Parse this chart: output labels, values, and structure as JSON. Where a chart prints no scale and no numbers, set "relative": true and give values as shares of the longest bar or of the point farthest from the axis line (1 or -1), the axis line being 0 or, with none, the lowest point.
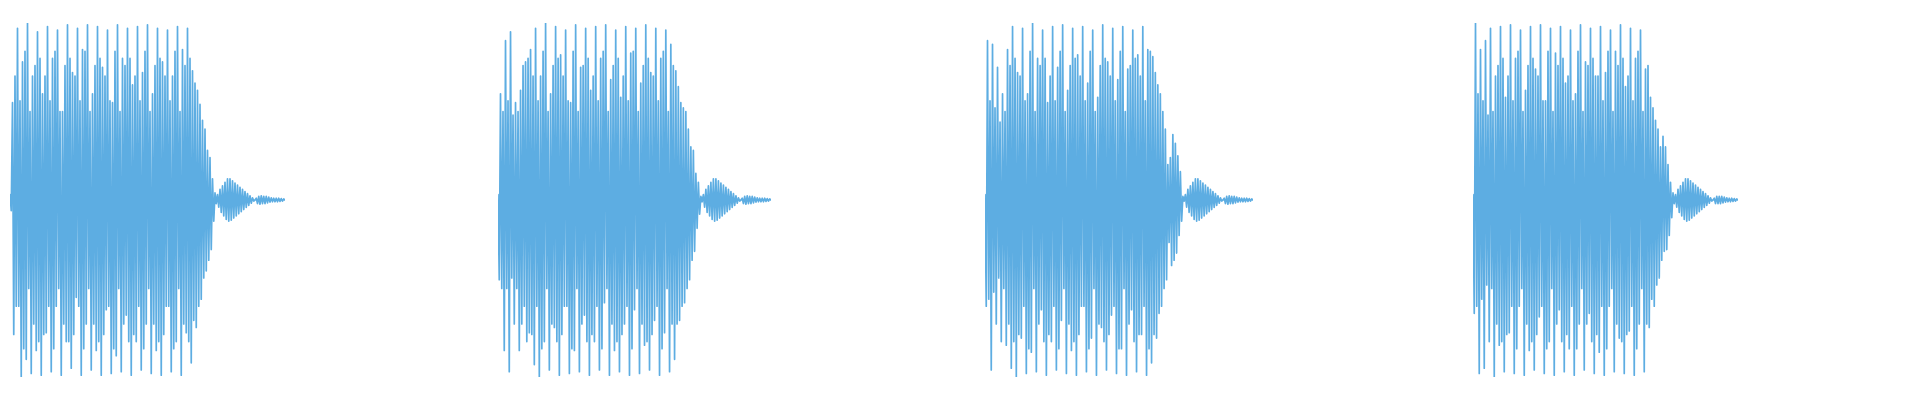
{
  "chart_data": [
    {
      "type": "line",
      "relative": true,
      "color": "#5dade2",
      "categories": [
        null,
        null,
        null,
        null,
        null,
        null,
        null,
        null,
        null,
        null,
        null,
        null,
        null,
        null,
        null,
        null,
        null,
        null,
        null,
        null,
        null,
        null,
        null,
        null,
        null,
        null,
        null,
        null,
        null,
        null,
        null,
        null,
        null,
        null,
        null,
        null,
        null,
        null,
        null,
        null,
        null,
        null,
        null,
        null,
        null,
        null,
        null,
        null,
        null,
        null,
        null,
        null,
        null,
        null,
        null,
        null,
        null,
        null,
        null,
        null,
        null,
        null,
        null,
        null,
        null,
        null,
        null,
        null,
        null,
        null,
        null,
        null,
        null,
        null,
        null,
        null,
        null,
        null,
        null,
        null,
        null,
        null,
        null,
        null,
        null,
        null,
        null,
        null,
        null,
        null,
        null,
        null,
        null,
        null,
        null,
        null,
        null,
        null,
        null,
        null,
        null,
        null,
        null,
        null,
        null,
        null,
        null,
        null,
        null,
        null,
        null,
        null,
        null,
        null,
        null,
        null,
        null,
        null,
        null,
        null,
        null,
        null,
        null,
        null,
        null,
        null,
        null,
        null,
        null,
        null,
        null,
        null,
        null,
        null,
        null,
        null,
        null,
        null,
        null,
        null,
        null,
        null,
        null,
        null,
        null,
        null,
        null,
        null,
        null,
        null,
        null,
        null,
        null,
        null,
        null,
        null,
        null,
        null,
        null,
        null,
        null,
        null,
        null,
        null,
        null,
        null,
        null,
        null,
        null,
        null,
        null,
        null,
        null,
        null,
        null,
        null,
        null,
        null,
        null,
        null,
        null,
        null,
        null,
        null,
        null,
        null,
        null,
        null,
        null,
        null,
        null,
        null,
        null,
        null,
        null,
        null,
        null,
        null,
        null,
        null,
        null,
        null,
        null,
        null,
        null,
        null,
        null,
        null,
        null,
        null,
        null,
        null,
        null,
        null,
        null,
        null,
        null,
        null,
        null,
        null,
        null
      ],
      "values": [
        0.515,
        0.47,
        0.775,
        0.12,
        0.85,
        0.2,
        0.985,
        0.2,
        0.78,
        0,
        0.89,
        0.08,
        0.92,
        0.05,
        1,
        0.25,
        0.75,
        0.01,
        0.85,
        0.15,
        0.88,
        0.075,
        0.975,
        0.1,
        0.9,
        0.005,
        0.8,
        0.12,
        0.85,
        0.125,
        0.99,
        0.2,
        0.78,
        0.015,
        0.9,
        0.08,
        0.92,
        0.2,
        0.98,
        0.25,
        0.75,
        0.005,
        0.75,
        0.15,
        0.88,
        0.1,
        0.995,
        0.1,
        0.9,
        0.025,
        0.86,
        0.12,
        0.85,
        0.225,
        0.985,
        0.2,
        0.78,
        0.005,
        0.925,
        0.08,
        0.92,
        0.15,
        0.995,
        0.25,
        0.75,
        0.02,
        0.8,
        0.15,
        0.88,
        0.075,
        0.99,
        0.1,
        0.9,
        0.005,
        0.875,
        0.12,
        0.85,
        0.19,
        0.98,
        0.2,
        0.78,
        0.01,
        0.775,
        0.08,
        0.92,
        0.06,
        0.995,
        0.25,
        0.75,
        0.015,
        0.9,
        0.15,
        0.88,
        0.175,
        0.985,
        0.1,
        0.9,
        0.005,
        0.825,
        0.12,
        0.85,
        0.1,
        0.99,
        0.2,
        0.78,
        0.02,
        0.86,
        0.08,
        0.92,
        0.15,
        0.995,
        0.25,
        0.75,
        0.01,
        0.8,
        0.15,
        0.88,
        0.075,
        0.985,
        0.1,
        0.9,
        0.005,
        0.89,
        0.12,
        0.85,
        0.2,
        0.98,
        0.2,
        0.78,
        0.015,
        0.85,
        0.08,
        0.92,
        0.1,
        0.99,
        0.25,
        0.75,
        0.005,
        0.925,
        0.15,
        0.88,
        0.125,
        0.985,
        0.1,
        0.9,
        0.04,
        0.865,
        0.16,
        0.83,
        0.14,
        0.81,
        0.2,
        0.77,
        0.22,
        0.725,
        0.28,
        0.7,
        0.3,
        0.64,
        0.33,
        0.62,
        0.36,
        0.56,
        0.44,
        0.52,
        0.49,
        0.515,
        0.48,
        0.53,
        0.465,
        0.54,
        0.455,
        0.55,
        0.445,
        0.56,
        0.44,
        0.56,
        0.443,
        0.554,
        0.449,
        0.548,
        0.455,
        0.542,
        0.461,
        0.536,
        0.467,
        0.53,
        0.473,
        0.524,
        0.479,
        0.518,
        0.485,
        0.512,
        0.491,
        0.506,
        0.497,
        0.5,
        0.505,
        0.49,
        0.51,
        0.488,
        0.512,
        0.49,
        0.51,
        0.49,
        0.51,
        0.492,
        0.508,
        0.494,
        0.506,
        0.495,
        0.505,
        0.495,
        0.505,
        0.495,
        0.505,
        0.496,
        0.504,
        0.497,
        0.503,
        0.5
      ]
    },
    {
      "type": "line",
      "relative": true,
      "color": "#5dade2",
      "categories": [
        null,
        null,
        null,
        null,
        null,
        null,
        null,
        null,
        null,
        null,
        null,
        null,
        null,
        null,
        null,
        null,
        null,
        null,
        null,
        null,
        null,
        null,
        null,
        null,
        null,
        null,
        null,
        null,
        null,
        null,
        null,
        null,
        null,
        null,
        null,
        null,
        null,
        null,
        null,
        null,
        null,
        null,
        null,
        null,
        null,
        null,
        null,
        null,
        null,
        null,
        null,
        null,
        null,
        null,
        null,
        null,
        null,
        null,
        null,
        null,
        null,
        null,
        null,
        null,
        null,
        null,
        null,
        null,
        null,
        null,
        null,
        null,
        null,
        null,
        null,
        null,
        null,
        null,
        null,
        null,
        null,
        null,
        null,
        null,
        null,
        null,
        null,
        null,
        null,
        null,
        null,
        null,
        null,
        null,
        null,
        null,
        null,
        null,
        null,
        null,
        null,
        null,
        null,
        null,
        null,
        null,
        null,
        null,
        null,
        null,
        null,
        null,
        null,
        null,
        null,
        null,
        null,
        null,
        null,
        null,
        null,
        null,
        null,
        null,
        null,
        null,
        null,
        null,
        null,
        null,
        null,
        null,
        null,
        null,
        null,
        null,
        null,
        null,
        null,
        null,
        null,
        null,
        null,
        null,
        null,
        null,
        null,
        null,
        null,
        null,
        null,
        null,
        null,
        null,
        null,
        null,
        null,
        null,
        null,
        null,
        null,
        null,
        null,
        null,
        null,
        null,
        null,
        null,
        null,
        null,
        null,
        null,
        null,
        null,
        null,
        null,
        null,
        null,
        null,
        null,
        null,
        null,
        null,
        null,
        null,
        null,
        null,
        null,
        null,
        null,
        null,
        null,
        null,
        null,
        null,
        null,
        null,
        null,
        null,
        null,
        null,
        null,
        null,
        null,
        null,
        null,
        null,
        null,
        null,
        null,
        null,
        null,
        null,
        null,
        null,
        null,
        null,
        null,
        null
      ],
      "values": [
        0.515,
        0.275,
        0.8,
        0.25,
        0.75,
        0.075,
        0.95,
        0.25,
        0.78,
        0.015,
        0.975,
        0.28,
        0.74,
        0.15,
        0.775,
        0.25,
        0.75,
        0.075,
        0.81,
        0.15,
        0.88,
        0.2,
        0.89,
        0.1,
        0.9,
        0.125,
        0.925,
        0.12,
        0.85,
        0.035,
        0.985,
        0.2,
        0.78,
        0,
        0.85,
        0.08,
        0.92,
        0.1,
        1,
        0.25,
        0.75,
        0.02,
        0.8,
        0.15,
        0.88,
        0.14,
        0.99,
        0.1,
        0.9,
        0.005,
        0.91,
        0.12,
        0.85,
        0.2,
        0.98,
        0.2,
        0.78,
        0.01,
        0.775,
        0.08,
        0.92,
        0.075,
        0.995,
        0.25,
        0.75,
        0.015,
        0.875,
        0.15,
        0.88,
        0.175,
        0.985,
        0.1,
        0.9,
        0.005,
        0.81,
        0.12,
        0.85,
        0.1,
        0.99,
        0.2,
        0.78,
        0.02,
        0.9,
        0.08,
        0.92,
        0.21,
        0.995,
        0.25,
        0.75,
        0.005,
        0.84,
        0.15,
        0.88,
        0.075,
        0.98,
        0.1,
        0.9,
        0.015,
        0.79,
        0.12,
        0.85,
        0.15,
        0.99,
        0.2,
        0.78,
        0.005,
        0.915,
        0.08,
        0.92,
        0.19,
        0.985,
        0.25,
        0.75,
        0.01,
        0.83,
        0.15,
        0.88,
        0.09,
        0.995,
        0.1,
        0.9,
        0.02,
        0.86,
        0.12,
        0.85,
        0.16,
        0.985,
        0.2,
        0.78,
        0.005,
        0.9,
        0.08,
        0.92,
        0.125,
        0.98,
        0.25,
        0.75,
        0.015,
        0.94,
        0.15,
        0.88,
        0.05,
        0.865,
        0.15,
        0.82,
        0.16,
        0.775,
        0.2,
        0.76,
        0.21,
        0.75,
        0.25,
        0.7,
        0.275,
        0.65,
        0.33,
        0.64,
        0.355,
        0.575,
        0.42,
        0.55,
        0.46,
        0.51,
        0.495,
        0.515,
        0.48,
        0.53,
        0.465,
        0.54,
        0.455,
        0.55,
        0.445,
        0.56,
        0.44,
        0.56,
        0.443,
        0.554,
        0.449,
        0.548,
        0.455,
        0.542,
        0.461,
        0.536,
        0.467,
        0.53,
        0.473,
        0.524,
        0.479,
        0.518,
        0.485,
        0.512,
        0.491,
        0.506,
        0.497,
        0.5,
        0.505,
        0.49,
        0.51,
        0.488,
        0.512,
        0.49,
        0.51,
        0.49,
        0.51,
        0.492,
        0.508,
        0.494,
        0.506,
        0.495,
        0.505,
        0.495,
        0.505,
        0.495,
        0.505,
        0.496,
        0.504,
        0.497,
        0.503,
        0.5
      ]
    },
    {
      "type": "line",
      "relative": true,
      "color": "#5dade2",
      "categories": [
        null,
        null,
        null,
        null,
        null,
        null,
        null,
        null,
        null,
        null,
        null,
        null,
        null,
        null,
        null,
        null,
        null,
        null,
        null,
        null,
        null,
        null,
        null,
        null,
        null,
        null,
        null,
        null,
        null,
        null,
        null,
        null,
        null,
        null,
        null,
        null,
        null,
        null,
        null,
        null,
        null,
        null,
        null,
        null,
        null,
        null,
        null,
        null,
        null,
        null,
        null,
        null,
        null,
        null,
        null,
        null,
        null,
        null,
        null,
        null,
        null,
        null,
        null,
        null,
        null,
        null,
        null,
        null,
        null,
        null,
        null,
        null,
        null,
        null,
        null,
        null,
        null,
        null,
        null,
        null,
        null,
        null,
        null,
        null,
        null,
        null,
        null,
        null,
        null,
        null,
        null,
        null,
        null,
        null,
        null,
        null,
        null,
        null,
        null,
        null,
        null,
        null,
        null,
        null,
        null,
        null,
        null,
        null,
        null,
        null,
        null,
        null,
        null,
        null,
        null,
        null,
        null,
        null,
        null,
        null,
        null,
        null,
        null,
        null,
        null,
        null,
        null,
        null,
        null,
        null,
        null,
        null,
        null,
        null,
        null,
        null,
        null,
        null,
        null,
        null,
        null,
        null,
        null,
        null,
        null,
        null,
        null,
        null,
        null,
        null,
        null,
        null,
        null,
        null,
        null,
        null,
        null,
        null,
        null,
        null,
        null,
        null,
        null,
        null,
        null,
        null,
        null,
        null,
        null,
        null,
        null,
        null,
        null,
        null,
        null,
        null,
        null,
        null,
        null,
        null,
        null,
        null,
        null,
        null,
        null,
        null,
        null,
        null,
        null,
        null,
        null,
        null,
        null,
        null,
        null,
        null,
        null,
        null,
        null,
        null,
        null,
        null,
        null,
        null,
        null,
        null,
        null,
        null,
        null,
        null,
        null,
        null,
        null,
        null,
        null
      ],
      "values": [
        0.515,
        0.2,
        0.95,
        0.22,
        0.78,
        0.02,
        0.94,
        0.24,
        0.76,
        0.15,
        0.875,
        0.28,
        0.72,
        0.1,
        0.8,
        0.25,
        0.75,
        0.09,
        0.925,
        0.15,
        0.88,
        0.025,
        0.99,
        0.1,
        0.9,
        0,
        0.86,
        0.12,
        0.85,
        0.11,
        0.985,
        0.2,
        0.78,
        0.01,
        0.8,
        0.08,
        0.92,
        0.07,
        1,
        0.25,
        0.75,
        0.015,
        0.9,
        0.15,
        0.88,
        0.19,
        0.98,
        0.1,
        0.9,
        0.005,
        0.775,
        0.12,
        0.85,
        0.1,
        0.99,
        0.2,
        0.78,
        0.02,
        0.875,
        0.08,
        0.92,
        0.16,
        0.995,
        0.25,
        0.75,
        0.01,
        0.81,
        0.15,
        0.88,
        0.075,
        0.985,
        0.1,
        0.9,
        0.005,
        0.91,
        0.12,
        0.85,
        0.2,
        0.99,
        0.2,
        0.78,
        0.015,
        0.83,
        0.08,
        0.92,
        0.11,
        0.98,
        0.25,
        0.75,
        0.005,
        0.79,
        0.15,
        0.88,
        0.14,
        0.995,
        0.1,
        0.9,
        0.02,
        0.89,
        0.12,
        0.85,
        0.175,
        0.985,
        0.2,
        0.78,
        0.01,
        0.84,
        0.08,
        0.92,
        0.08,
        0.99,
        0.25,
        0.75,
        0.005,
        0.87,
        0.15,
        0.88,
        0.19,
        0.98,
        0.1,
        0.9,
        0.015,
        0.91,
        0.12,
        0.85,
        0.12,
        0.99,
        0.2,
        0.78,
        0.005,
        0.925,
        0.08,
        0.92,
        0.04,
        0.905,
        0.12,
        0.86,
        0.11,
        0.825,
        0.18,
        0.8,
        0.2,
        0.75,
        0.25,
        0.7,
        0.275,
        0.6,
        0.38,
        0.62,
        0.315,
        0.685,
        0.33,
        0.66,
        0.35,
        0.625,
        0.4,
        0.58,
        0.44,
        0.51,
        0.497,
        0.515,
        0.48,
        0.53,
        0.465,
        0.54,
        0.455,
        0.55,
        0.445,
        0.56,
        0.44,
        0.56,
        0.443,
        0.554,
        0.449,
        0.548,
        0.455,
        0.542,
        0.461,
        0.536,
        0.467,
        0.53,
        0.473,
        0.524,
        0.479,
        0.518,
        0.485,
        0.512,
        0.491,
        0.506,
        0.497,
        0.5,
        0.505,
        0.49,
        0.51,
        0.488,
        0.512,
        0.49,
        0.51,
        0.49,
        0.51,
        0.492,
        0.508,
        0.494,
        0.506,
        0.495,
        0.505,
        0.495,
        0.505,
        0.495,
        0.505,
        0.496,
        0.504,
        0.497,
        0.503,
        0.5
      ]
    },
    {
      "type": "line",
      "relative": true,
      "color": "#5dade2",
      "categories": [
        null,
        null,
        null,
        null,
        null,
        null,
        null,
        null,
        null,
        null,
        null,
        null,
        null,
        null,
        null,
        null,
        null,
        null,
        null,
        null,
        null,
        null,
        null,
        null,
        null,
        null,
        null,
        null,
        null,
        null,
        null,
        null,
        null,
        null,
        null,
        null,
        null,
        null,
        null,
        null,
        null,
        null,
        null,
        null,
        null,
        null,
        null,
        null,
        null,
        null,
        null,
        null,
        null,
        null,
        null,
        null,
        null,
        null,
        null,
        null,
        null,
        null,
        null,
        null,
        null,
        null,
        null,
        null,
        null,
        null,
        null,
        null,
        null,
        null,
        null,
        null,
        null,
        null,
        null,
        null,
        null,
        null,
        null,
        null,
        null,
        null,
        null,
        null,
        null,
        null,
        null,
        null,
        null,
        null,
        null,
        null,
        null,
        null,
        null,
        null,
        null,
        null,
        null,
        null,
        null,
        null,
        null,
        null,
        null,
        null,
        null,
        null,
        null,
        null,
        null,
        null,
        null,
        null,
        null,
        null,
        null,
        null,
        null,
        null,
        null,
        null,
        null,
        null,
        null,
        null,
        null,
        null,
        null,
        null,
        null,
        null,
        null,
        null,
        null,
        null,
        null,
        null,
        null,
        null,
        null,
        null,
        null,
        null,
        null,
        null,
        null,
        null,
        null,
        null,
        null,
        null,
        null,
        null,
        null,
        null,
        null,
        null,
        null,
        null,
        null,
        null,
        null,
        null,
        null,
        null,
        null,
        null,
        null,
        null,
        null,
        null,
        null,
        null,
        null,
        null,
        null,
        null,
        null,
        null,
        null,
        null,
        null,
        null,
        null,
        null,
        null,
        null,
        null,
        null,
        null,
        null,
        null,
        null,
        null,
        null,
        null,
        null,
        null,
        null,
        null,
        null,
        null,
        null,
        null,
        null,
        null,
        null,
        null
      ],
      "values": [
        0.515,
        0.18,
        1,
        0.2,
        0.8,
        0.01,
        0.925,
        0.22,
        0.78,
        0.025,
        0.95,
        0.26,
        0.74,
        0.1,
        0.985,
        0.25,
        0.75,
        0,
        0.85,
        0.15,
        0.88,
        0.09,
        0.99,
        0.1,
        0.9,
        0.015,
        0.79,
        0.12,
        0.85,
        0.125,
        0.995,
        0.2,
        0.78,
        0.01,
        0.9,
        0.08,
        0.92,
        0.2,
        0.98,
        0.25,
        0.75,
        0.005,
        0.81,
        0.15,
        0.88,
        0.075,
        0.99,
        0.1,
        0.9,
        0.02,
        0.87,
        0.12,
        0.85,
        0.17,
        0.995,
        0.2,
        0.78,
        0.01,
        0.78,
        0.08,
        0.92,
        0.1,
        0.985,
        0.25,
        0.75,
        0.005,
        0.915,
        0.15,
        0.88,
        0.19,
        0.99,
        0.1,
        0.9,
        0.015,
        0.83,
        0.12,
        0.85,
        0.08,
        0.98,
        0.2,
        0.78,
        0.005,
        0.8,
        0.08,
        0.92,
        0.15,
        0.995,
        0.25,
        0.75,
        0.02,
        0.89,
        0.15,
        0.88,
        0.18,
        0.985,
        0.1,
        0.9,
        0.01,
        0.85,
        0.12,
        0.85,
        0.07,
        0.99,
        0.2,
        0.78,
        0.005,
        0.86,
        0.08,
        0.92,
        0.2,
        0.98,
        0.25,
        0.75,
        0.015,
        0.92,
        0.15,
        0.88,
        0.11,
        0.995,
        0.1,
        0.9,
        0.01,
        0.82,
        0.12,
        0.85,
        0.13,
        0.985,
        0.2,
        0.78,
        0.005,
        0.9,
        0.08,
        0.92,
        0.15,
        0.98,
        0.25,
        0.75,
        0.015,
        0.87,
        0.15,
        0.88,
        0.14,
        0.79,
        0.22,
        0.76,
        0.2,
        0.725,
        0.26,
        0.7,
        0.28,
        0.65,
        0.33,
        0.68,
        0.355,
        0.65,
        0.36,
        0.6,
        0.4,
        0.55,
        0.45,
        0.52,
        0.49,
        0.515,
        0.48,
        0.53,
        0.465,
        0.54,
        0.455,
        0.55,
        0.445,
        0.56,
        0.44,
        0.56,
        0.443,
        0.554,
        0.449,
        0.548,
        0.455,
        0.542,
        0.461,
        0.536,
        0.467,
        0.53,
        0.473,
        0.524,
        0.479,
        0.518,
        0.485,
        0.512,
        0.491,
        0.506,
        0.497,
        0.5,
        0.505,
        0.49,
        0.51,
        0.49,
        0.51,
        0.49,
        0.51,
        0.492,
        0.508,
        0.494,
        0.506,
        0.495,
        0.505,
        0.495,
        0.505,
        0.496,
        0.504,
        0.497,
        0.503,
        0.5
      ]
    }
  ]
}
